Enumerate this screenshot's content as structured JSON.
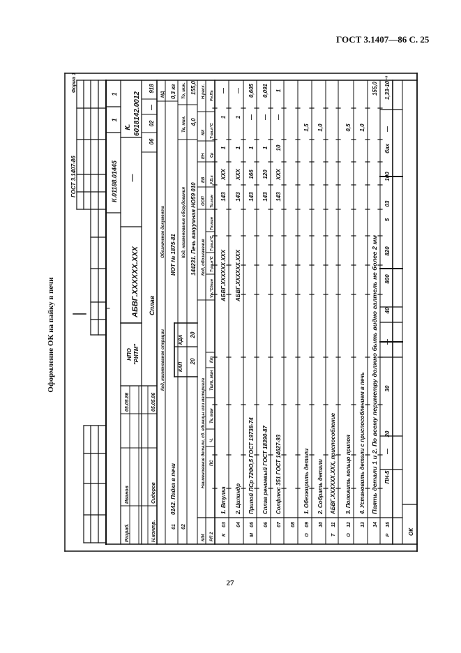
{
  "page_header": "ГОСТ 3.1407—86 С. 25",
  "caption": "Оформление ОК на пайку в печи",
  "page_number": "27",
  "form": {
    "standard": "ГОСТ 3.1407-86",
    "form_label": "Форма 1",
    "doc_code": "К.01188.01445",
    "sheets_total": "1",
    "sheet": "1",
    "title_block": {
      "developed_label": "Разраб.",
      "developer": "Иванов",
      "developed_date": "05.05.86",
      "norm_control_label": "Н.контр.",
      "norm_controller": "Сидоров",
      "norm_control_date": "05.05.86"
    },
    "organization_line1": "НПО",
    "organization_line2": "\"РИТМ\"",
    "part_designation": "АБВГ.XXXXXX.XXX",
    "dash": "—",
    "card_code_prefix": "К.",
    "card_code": "6018142.0012",
    "material": "Сплав",
    "codes": [
      "06",
      "02",
      "—",
      "918"
    ],
    "mass_label": "МД",
    "mass_value": "0,3 кг",
    "operation_header": "Код, наименование операции",
    "document_header": "Обозначение документа",
    "operation": {
      "number": "01",
      "name": "0142. Пайка в печи",
      "document": "ИОТ № 1875-81"
    },
    "equipment_header": "Код, наименование оборудования",
    "equipment_row_number": "02",
    "equipment": "144231. Печь вакуумная НО59 010",
    "tv_label": "Тв, мин.",
    "to_label": "То, мин.",
    "tv_value": "4,0",
    "to_value": "155,0",
    "kap_label": "КАП",
    "kda_label": "КДА",
    "kap_value": "20",
    "kda_value": "20",
    "header_row1": {
      "prefix": "К/М",
      "name": "Наименование детали, сб. единицы или материала",
      "code": "Код, обозначение",
      "cols": [
        "ООП",
        "ЕВ",
        "ЕН",
        "КИ",
        "Н.расх."
      ]
    },
    "header_row2": {
      "prefix": "РП 2",
      "cols_left": [
        "ПС",
        "Ч.",
        "Тк, мин",
        "Тшт, мин",
        "Кт"
      ],
      "cols_right": [
        "Vн,°С/мин",
        "Т-ра,н°С",
        "Т-ра,к°С",
        "Тн,мин",
        "Ти,мин",
        "F,В,г",
        "Ср",
        "Т-ра,п°С",
        "Рн,Па"
      ]
    },
    "rows": [
      {
        "prefix": "К",
        "num": "03",
        "text": "1. Втулка",
        "designation": "АБВГ.XXXXXX.XXX",
        "values": [
          "143",
          "XXX",
          "1",
          "1",
          "—"
        ]
      },
      {
        "prefix": "",
        "num": "04",
        "text": "2. Цилиндр",
        "designation": "АБВГ.XXXXXX.XXX",
        "values": [
          "143",
          "XXX",
          "1",
          "1",
          "—"
        ]
      },
      {
        "prefix": "М",
        "num": "05",
        "text": "Припой ПСр 72ФО,5 ГОСТ 19738-74",
        "values": [
          "143",
          "166",
          "1",
          "—",
          "0,605"
        ]
      },
      {
        "prefix": "",
        "num": "06",
        "text": "Сплав рениевый ГОСТ 18390-87",
        "values": [
          "143",
          "120",
          "1",
          "—",
          "0,091"
        ]
      },
      {
        "prefix": "",
        "num": "07",
        "text": "Солфлюс 351 ГОСТ 14627-93",
        "values": [
          "143",
          "XXX",
          "10",
          "—",
          "1"
        ]
      },
      {
        "prefix": "",
        "num": "08",
        "text": ""
      },
      {
        "prefix": "О",
        "num": "09",
        "text": "1. Обезжирить детали",
        "time": "1,5"
      },
      {
        "prefix": "",
        "num": "10",
        "text": "2. Собрать детали",
        "time": "1,0"
      },
      {
        "prefix": "Т",
        "num": "11",
        "text": "АБВГ.XXXXXX.XXX, приспособление"
      },
      {
        "prefix": "О",
        "num": "12",
        "text": "3. Положить кольцо припоя",
        "time": "0,5"
      },
      {
        "prefix": "",
        "num": "13",
        "text": "4. Установить детали с приспособлением в печь",
        "time": "1,0"
      },
      {
        "prefix": "",
        "num": "14",
        "text": "Паять детали 1 и 2. По всему периметру должно быть видно галтель не более 2 мм",
        "main_time": "155,0"
      }
    ],
    "mode_row": {
      "prefix": "Р",
      "num": "15",
      "values": [
        "ПН-5",
        "—",
        "20",
        "30",
        "—",
        "40",
        "800",
        "820",
        "5",
        "03",
        "100",
        "бах",
        "—",
        "1,33·10⁻³"
      ]
    },
    "footer_label": "ОК"
  }
}
